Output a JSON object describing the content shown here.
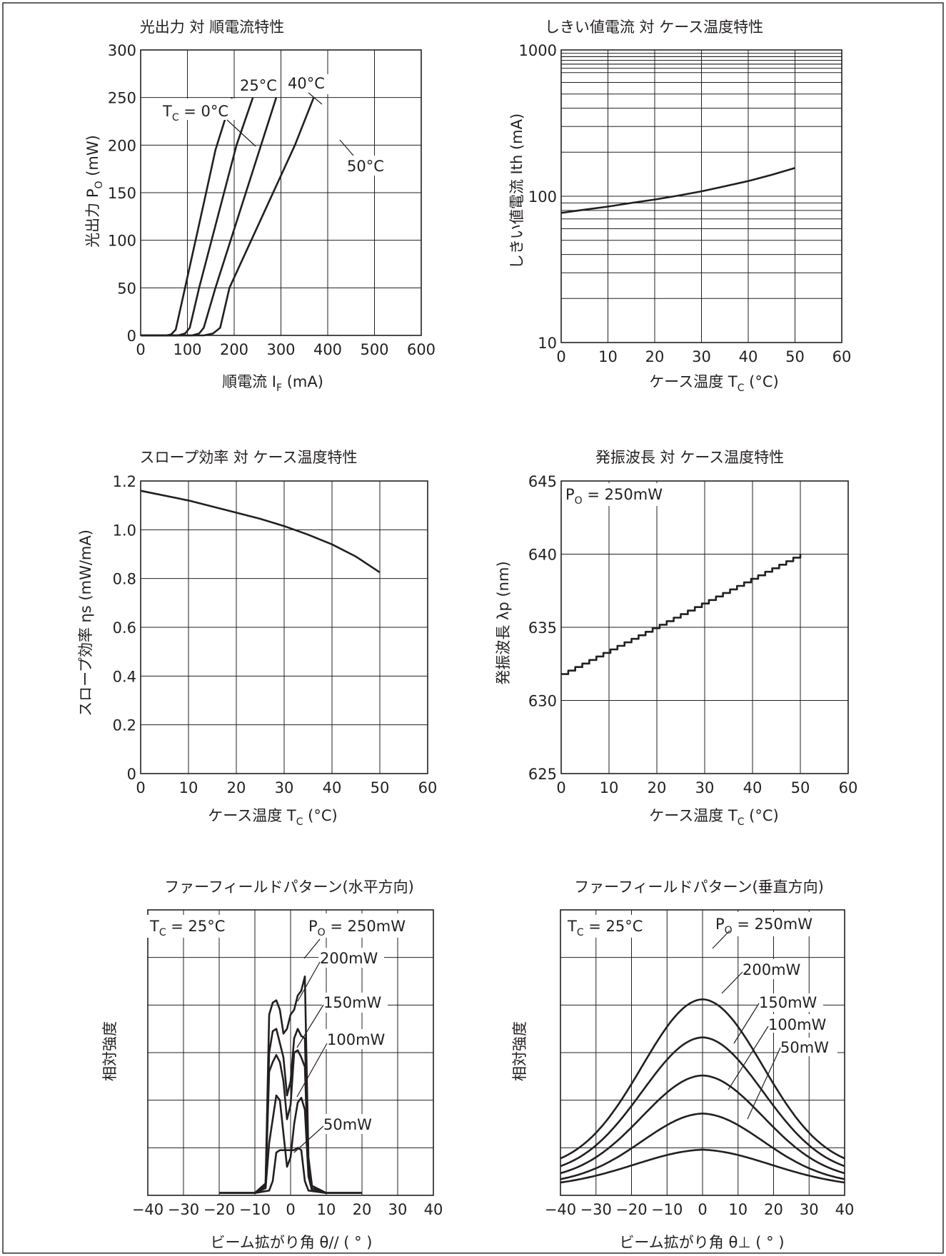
{
  "chart_data": [
    {
      "type": "line",
      "title": "光出力 対 順電流特性",
      "xlabel": {
        "main": "順電流 I",
        "sub": "F",
        "unit": " (mA)"
      },
      "ylabel": {
        "main": "光出力 P",
        "sub": "O",
        "unit": " (mW)"
      },
      "xlim": [
        0,
        600
      ],
      "ylim": [
        0,
        300
      ],
      "xticks": [
        0,
        100,
        200,
        300,
        400,
        500,
        600
      ],
      "yticks": [
        0,
        50,
        100,
        150,
        200,
        250,
        300
      ],
      "xtick_labels": [
        "0",
        "100",
        "200",
        "300",
        "400",
        "500",
        "600"
      ],
      "ytick_labels": [
        "0",
        "50",
        "100",
        "150",
        "200",
        "250",
        "300"
      ],
      "grid": true,
      "series": [
        {
          "name": "0°C",
          "points": [
            [
              0,
              0
            ],
            [
              55,
              0
            ],
            [
              65,
              1
            ],
            [
              75,
              6
            ],
            [
              95,
              50
            ],
            [
              140,
              150
            ],
            [
              160,
              195
            ],
            [
              195,
              250
            ]
          ]
        },
        {
          "name": "25°C",
          "points": [
            [
              0,
              0
            ],
            [
              80,
              0
            ],
            [
              95,
              2
            ],
            [
              105,
              8
            ],
            [
              125,
              50
            ],
            [
              205,
              200
            ],
            [
              240,
              250
            ]
          ]
        },
        {
          "name": "40°C",
          "points": [
            [
              0,
              0
            ],
            [
              110,
              0
            ],
            [
              125,
              2
            ],
            [
              135,
              8
            ],
            [
              160,
              50
            ],
            [
              290,
              250
            ]
          ]
        },
        {
          "name": "50°C",
          "points": [
            [
              0,
              0
            ],
            [
              135,
              0
            ],
            [
              155,
              2
            ],
            [
              170,
              8
            ],
            [
              190,
              50
            ],
            [
              330,
              200
            ],
            [
              370,
              250
            ]
          ]
        }
      ],
      "annotations": [
        {
          "label": "25°C",
          "pos": [
            212,
            268
          ]
        },
        {
          "label": "40°C",
          "pos": [
            298,
            268
          ]
        },
        {
          "label": "50°C",
          "pos": [
            385,
            183
          ]
        }
      ],
      "tc_label": {
        "main": "T",
        "sub": "C",
        "rest": " = 0°C"
      }
    },
    {
      "type": "line",
      "title": "しきい値電流 対 ケース温度特性",
      "xlabel": {
        "main": "ケース温度 T",
        "sub": "C",
        "unit": " (°C)"
      },
      "ylabel": {
        "main": "しきい値電流 Ith (mA)"
      },
      "xlim": [
        0,
        60
      ],
      "ylim": [
        10,
        1000
      ],
      "yscale": "log",
      "xticks": [
        0,
        10,
        20,
        30,
        40,
        50,
        60
      ],
      "xtick_labels": [
        "0",
        "10",
        "20",
        "30",
        "40",
        "50",
        "60"
      ],
      "yticks": [
        10,
        100,
        1000
      ],
      "ytick_labels": [
        "10",
        "100",
        "1000"
      ],
      "grid": true,
      "series": [
        {
          "name": "",
          "points": [
            [
              0,
              77
            ],
            [
              5,
              81
            ],
            [
              10,
              85
            ],
            [
              15,
              90
            ],
            [
              20,
              95
            ],
            [
              25,
              101
            ],
            [
              30,
              108
            ],
            [
              35,
              117
            ],
            [
              40,
              127
            ],
            [
              45,
              140
            ],
            [
              50,
              156
            ]
          ]
        }
      ]
    },
    {
      "type": "line",
      "title": "スロープ効率 対 ケース温度特性",
      "xlabel": {
        "main": "ケース温度 T",
        "sub": "C",
        "unit": " (°C)"
      },
      "ylabel": {
        "main": "スロープ効率 ηs (mW/mA)"
      },
      "xlim": [
        0,
        60
      ],
      "ylim": [
        0,
        1.2
      ],
      "xticks": [
        0,
        10,
        20,
        30,
        40,
        50,
        60
      ],
      "xtick_labels": [
        "0",
        "10",
        "20",
        "30",
        "40",
        "50",
        "60"
      ],
      "yticks": [
        0,
        0.2,
        0.4,
        0.6,
        0.8,
        1.0,
        1.2
      ],
      "ytick_labels": [
        "0",
        "0.2",
        "0.4",
        "0.6",
        "0.8",
        "1.0",
        "1.2"
      ],
      "grid": true,
      "series": [
        {
          "name": "",
          "points": [
            [
              0,
              1.16
            ],
            [
              10,
              1.12
            ],
            [
              20,
              1.07
            ],
            [
              25,
              1.045
            ],
            [
              30,
              1.015
            ],
            [
              35,
              0.98
            ],
            [
              40,
              0.94
            ],
            [
              45,
              0.89
            ],
            [
              50,
              0.825
            ]
          ]
        }
      ]
    },
    {
      "type": "line",
      "title": "発振波長 対 ケース温度特性",
      "xlabel": {
        "main": "ケース温度 T",
        "sub": "C",
        "unit": " (°C)"
      },
      "ylabel": {
        "main": "発振波長 λp (nm)"
      },
      "xlim": [
        0,
        60
      ],
      "ylim": [
        625,
        645
      ],
      "xticks": [
        0,
        10,
        20,
        30,
        40,
        50,
        60
      ],
      "xtick_labels": [
        "0",
        "10",
        "20",
        "30",
        "40",
        "50",
        "60"
      ],
      "yticks": [
        625,
        630,
        635,
        640,
        645
      ],
      "ytick_labels": [
        "625",
        "630",
        "635",
        "640",
        "645"
      ],
      "grid": true,
      "step": true,
      "series": [
        {
          "name": "",
          "points": [
            [
              0,
              631.8
            ],
            [
              50,
              640.0
            ]
          ]
        }
      ],
      "condition": {
        "main": "P",
        "sub": "O",
        "rest": " = 250mW"
      }
    },
    {
      "type": "line",
      "title": "ファーフィールドパターン(水平方向)",
      "xlabel": {
        "main": "ビーム拡がり角 θ// ( ° )"
      },
      "ylabel": {
        "main": "相対強度"
      },
      "xlim": [
        -40,
        40
      ],
      "ylim": [
        0,
        6
      ],
      "xticks": [
        -40,
        -30,
        -20,
        -10,
        0,
        10,
        20,
        30,
        40
      ],
      "xtick_labels": [
        "−40",
        "−30",
        "−20",
        "−10",
        "0",
        "10",
        "20",
        "30",
        "40"
      ],
      "grid": true,
      "series": [
        {
          "name": "250mW",
          "points": [
            [
              -20,
              0.05
            ],
            [
              -10,
              0.05
            ],
            [
              -7,
              0.25
            ],
            [
              -6,
              3.8
            ],
            [
              -5,
              4.05
            ],
            [
              -4,
              4.1
            ],
            [
              -3,
              3.9
            ],
            [
              -2,
              3.4
            ],
            [
              -1,
              3.5
            ],
            [
              0,
              3.8
            ],
            [
              1,
              3.9
            ],
            [
              2,
              4.2
            ],
            [
              3,
              4.3
            ],
            [
              4,
              4.6
            ],
            [
              5,
              0.8
            ],
            [
              6,
              0.2
            ],
            [
              10,
              0.05
            ],
            [
              20,
              0.05
            ]
          ]
        },
        {
          "name": "200mW",
          "points": [
            [
              -20,
              0.05
            ],
            [
              -10,
              0.05
            ],
            [
              -7,
              0.25
            ],
            [
              -6,
              3.0
            ],
            [
              -5,
              3.45
            ],
            [
              -4,
              3.5
            ],
            [
              -3,
              3.2
            ],
            [
              -2,
              2.9
            ],
            [
              -1,
              2.1
            ],
            [
              0,
              2.4
            ],
            [
              1,
              3.3
            ],
            [
              2,
              3.5
            ],
            [
              3,
              3.35
            ],
            [
              4,
              3.3
            ],
            [
              5,
              0.6
            ],
            [
              6,
              0.15
            ],
            [
              10,
              0.05
            ],
            [
              20,
              0.05
            ]
          ]
        },
        {
          "name": "150mW",
          "points": [
            [
              -20,
              0.05
            ],
            [
              -10,
              0.05
            ],
            [
              -7,
              0.2
            ],
            [
              -6,
              2.6
            ],
            [
              -5,
              2.8
            ],
            [
              -4,
              2.95
            ],
            [
              -3,
              2.8
            ],
            [
              -2,
              2.4
            ],
            [
              -1,
              1.6
            ],
            [
              0,
              1.9
            ],
            [
              1,
              3.0
            ],
            [
              2,
              3.05
            ],
            [
              3,
              2.9
            ],
            [
              4,
              2.7
            ],
            [
              5,
              0.5
            ],
            [
              6,
              0.1
            ],
            [
              10,
              0.05
            ],
            [
              20,
              0.05
            ]
          ]
        },
        {
          "name": "100mW",
          "points": [
            [
              -20,
              0.05
            ],
            [
              -10,
              0.05
            ],
            [
              -7,
              0.15
            ],
            [
              -6,
              1.1
            ],
            [
              -5,
              1.6
            ],
            [
              -4,
              2.1
            ],
            [
              -3,
              2.0
            ],
            [
              -2,
              1.3
            ],
            [
              -1,
              0.6
            ],
            [
              0,
              0.8
            ],
            [
              1,
              1.5
            ],
            [
              2,
              1.95
            ],
            [
              3,
              2.05
            ],
            [
              4,
              1.8
            ],
            [
              5,
              0.4
            ],
            [
              6,
              0.1
            ],
            [
              10,
              0.05
            ],
            [
              20,
              0.05
            ]
          ]
        },
        {
          "name": "50mW",
          "points": [
            [
              -20,
              0.05
            ],
            [
              -10,
              0.05
            ],
            [
              -6,
              0.1
            ],
            [
              -5,
              0.3
            ],
            [
              -4,
              0.9
            ],
            [
              -3,
              0.95
            ],
            [
              -2,
              0.95
            ],
            [
              -1,
              0.95
            ],
            [
              0,
              0.95
            ],
            [
              1,
              0.95
            ],
            [
              2,
              1.0
            ],
            [
              3,
              0.95
            ],
            [
              4,
              0.3
            ],
            [
              5,
              0.1
            ],
            [
              10,
              0.05
            ],
            [
              20,
              0.05
            ]
          ]
        }
      ],
      "condition_tc": {
        "main": "T",
        "sub": "C",
        "rest": " = 25°C"
      },
      "condition_po": {
        "main": "P",
        "sub": "O",
        "rest": " = 250mW"
      },
      "labels": [
        "200mW",
        "150mW",
        "100mW",
        "50mW"
      ]
    },
    {
      "type": "line",
      "title": "ファーフィールドパターン(垂直方向)",
      "xlabel": {
        "main": "ビーム拡がり角 θ⊥ ( ° )"
      },
      "ylabel": {
        "main": "相対強度"
      },
      "xlim": [
        -40,
        40
      ],
      "ylim": [
        0,
        6
      ],
      "xticks": [
        -40,
        -30,
        -20,
        -10,
        0,
        10,
        20,
        30,
        40
      ],
      "xtick_labels": [
        "−40",
        "−30",
        "−20",
        "−10",
        "0",
        "10",
        "20",
        "30",
        "40"
      ],
      "grid": true,
      "gaussian": true,
      "series": [
        {
          "name": "250mW",
          "peak": 5.0,
          "base": 0.7,
          "width": 17
        },
        {
          "name": "200mW",
          "peak": 4.0,
          "base": 0.55,
          "width": 17
        },
        {
          "name": "150mW",
          "peak": 3.0,
          "base": 0.42,
          "width": 17
        },
        {
          "name": "100mW",
          "peak": 2.0,
          "base": 0.32,
          "width": 17
        },
        {
          "name": "50mW",
          "peak": 1.05,
          "base": 0.25,
          "width": 19
        }
      ],
      "condition_tc": {
        "main": "T",
        "sub": "C",
        "rest": " = 25°C"
      },
      "condition_po": {
        "main": "P",
        "sub": "O",
        "rest": " = 250mW"
      },
      "labels": [
        "200mW",
        "150mW",
        "100mW",
        "50mW"
      ]
    }
  ]
}
